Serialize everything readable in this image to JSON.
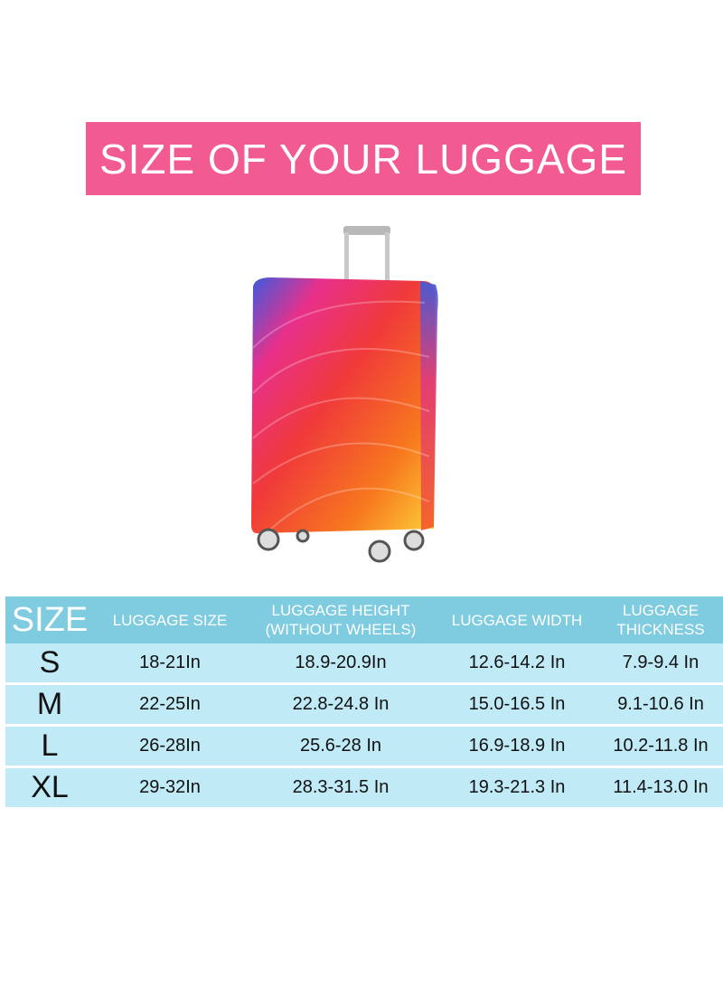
{
  "banner": {
    "title": "SIZE OF YOUR LUGGAGE",
    "color": "#f25a92"
  },
  "table": {
    "headers": [
      "SIZE",
      "LUGGAGE SIZE",
      "LUGGAGE HEIGHT (WITHOUT WHEELS)",
      "LUGGAGE WIDTH",
      "LUGGAGE THICKNESS"
    ],
    "header_color": "#7fcbe0",
    "row_color": "#bfeaf6",
    "rows": [
      [
        "S",
        "18-21In",
        "18.9-20.9In",
        "12.6-14.2 In",
        "7.9-9.4 In"
      ],
      [
        "M",
        "22-25In",
        "22.8-24.8 In",
        "15.0-16.5 In",
        "9.1-10.6 In"
      ],
      [
        "L",
        "26-28In",
        "25.6-28 In",
        "16.9-18.9 In",
        "10.2-11.8 In"
      ],
      [
        "XL",
        "29-32In",
        "28.3-31.5 In",
        "19.3-21.3 In",
        "11.4-13.0 In"
      ]
    ]
  }
}
